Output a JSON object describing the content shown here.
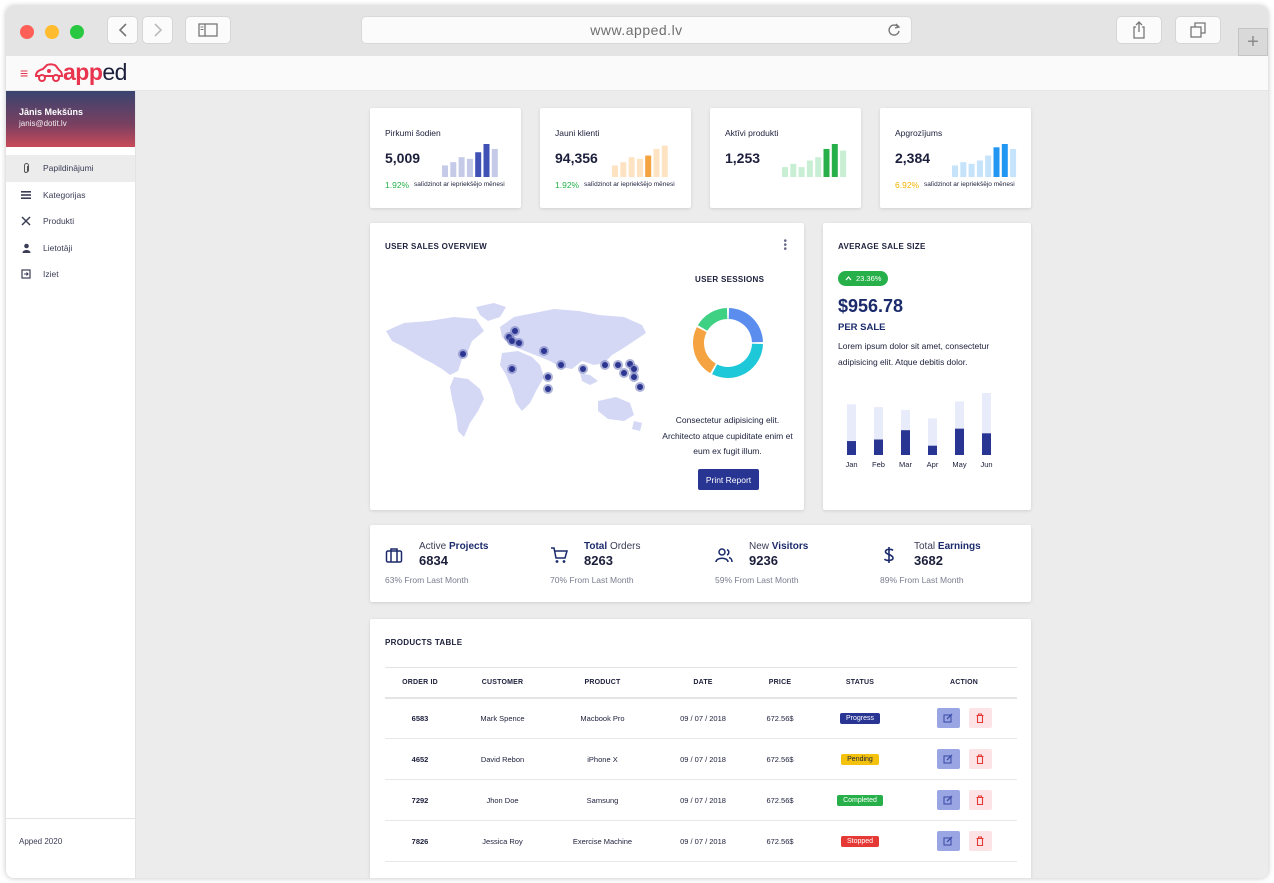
{
  "browser": {
    "url": "www.apped.lv"
  },
  "app": {
    "logo_text": "apped"
  },
  "sidebar": {
    "user_name": "Jānis Mekšūns",
    "user_email": "janis@dotit.lv",
    "items": [
      {
        "label": "Papildinājumi",
        "icon": "paperclip-icon"
      },
      {
        "label": "Kategorijas",
        "icon": "list-icon"
      },
      {
        "label": "Produkti",
        "icon": "utensils-icon"
      },
      {
        "label": "Lietotāji",
        "icon": "user-icon"
      },
      {
        "label": "Iziet",
        "icon": "logout-icon"
      }
    ],
    "footer": "Apped 2020"
  },
  "stats": [
    {
      "title": "Pirkumi šodien",
      "value": "5,009",
      "percent": "1.92%",
      "note": "salīdzinot ar iepriekšējo mēnesi",
      "percent_color": "#27b04a",
      "bars": [
        0.35,
        0.45,
        0.6,
        0.55,
        0.75,
        1.0,
        0.85
      ],
      "bar_color": "#3f51b5",
      "bar_light": "#c5cae9",
      "highlight": [
        4,
        5
      ]
    },
    {
      "title": "Jauni klienti",
      "value": "94,356",
      "percent": "1.92%",
      "note": "salīdzinot ar iepriekšējo mēnesi",
      "percent_color": "#27b04a",
      "bars": [
        0.35,
        0.45,
        0.6,
        0.55,
        0.65,
        0.85,
        0.95
      ],
      "bar_color": "#f4a340",
      "bar_light": "#fde3c2",
      "highlight": [
        4
      ]
    },
    {
      "title": "Aktīvi produkti",
      "value": "1,253",
      "percent": "",
      "note": "",
      "percent_color": "#27b04a",
      "bars": [
        0.3,
        0.4,
        0.3,
        0.5,
        0.6,
        0.85,
        1.0,
        0.8
      ],
      "bar_color": "#27b04a",
      "bar_light": "#c8efd3",
      "highlight": [
        5,
        6
      ]
    },
    {
      "title": "Apgrozījums",
      "value": "2,384",
      "percent": "6.92%",
      "note": "salīdzinot ar iepriekšējo mēnesi",
      "percent_color": "#f4b400",
      "bars": [
        0.35,
        0.45,
        0.4,
        0.5,
        0.65,
        0.9,
        1.0,
        0.85
      ],
      "bar_color": "#2196f3",
      "bar_light": "#c5e3fb",
      "highlight": [
        5,
        6
      ]
    }
  ],
  "overview": {
    "title": "USER SALES OVERVIEW",
    "sessions_title": "USER SESSIONS",
    "sessions_text": "Consectetur adipisicing elit. Architecto atque cupiditate enim et eum ex fugit illum.",
    "print_label": "Print Report",
    "donut": [
      {
        "value": 25,
        "color": "#5b8def"
      },
      {
        "value": 33,
        "color": "#1ec8d8"
      },
      {
        "value": 25,
        "color": "#f4a340"
      },
      {
        "value": 17,
        "color": "#3ed083"
      }
    ]
  },
  "avg_sale": {
    "title": "AVERAGE SALE SIZE",
    "change": "23.36%",
    "value": "$956.78",
    "subtitle": "PER SALE",
    "description": "Lorem ipsum dolor sit amet, consectetur adipisicing elit. Atque debitis dolor.",
    "chart_data": {
      "type": "bar",
      "categories": [
        "Jan",
        "Feb",
        "Mar",
        "Apr",
        "May",
        "Jun"
      ],
      "series": [
        {
          "values": [
            45,
            50,
            80,
            30,
            85,
            70
          ]
        },
        {
          "values": [
            90,
            85,
            80,
            65,
            95,
            110
          ]
        }
      ],
      "colors": [
        "#283593",
        "#e8ebfa"
      ]
    }
  },
  "kpis": [
    {
      "label_a": "Active",
      "label_b": "Projects",
      "value": "6834",
      "footer": "63% From Last Month",
      "icon": "briefcase-icon"
    },
    {
      "label_a": "Total",
      "label_b": "Orders",
      "value": "8263",
      "footer": "70% From Last Month",
      "icon": "cart-icon"
    },
    {
      "label_a": "New",
      "label_b": "Visitors",
      "value": "9236",
      "footer": "59% From Last Month",
      "icon": "users-icon"
    },
    {
      "label_a": "Total",
      "label_b": "Earnings",
      "value": "3682",
      "footer": "89% From Last Month",
      "icon": "dollar-icon"
    }
  ],
  "products": {
    "title": "PRODUCTS TABLE",
    "columns": [
      "ORDER ID",
      "CUSTOMER",
      "PRODUCT",
      "DATE",
      "PRICE",
      "STATUS",
      "ACTION"
    ],
    "rows": [
      {
        "id": "6583",
        "customer": "Mark Spence",
        "product": "Macbook Pro",
        "date": "09 / 07 / 2018",
        "price": "672.56$",
        "status": "Progress",
        "status_color": "#283593"
      },
      {
        "id": "4652",
        "customer": "David Rebon",
        "product": "iPhone X",
        "date": "09 / 07 / 2018",
        "price": "672.56$",
        "status": "Pending",
        "status_color": "#f4c20d"
      },
      {
        "id": "7292",
        "customer": "Jhon Doe",
        "product": "Samsung",
        "date": "09 / 07 / 2018",
        "price": "672.56$",
        "status": "Completed",
        "status_color": "#27b04a"
      },
      {
        "id": "7826",
        "customer": "Jessica Roy",
        "product": "Exercise Machine",
        "date": "09 / 07 / 2018",
        "price": "672.56$",
        "status": "Stopped",
        "status_color": "#e53935"
      }
    ]
  }
}
